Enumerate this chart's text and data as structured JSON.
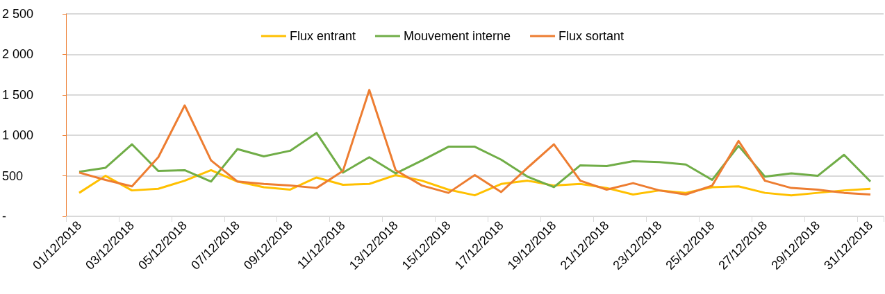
{
  "chart_data": {
    "type": "line",
    "categories": [
      "01/12/2018",
      null,
      "03/12/2018",
      null,
      "05/12/2018",
      null,
      "07/12/2018",
      null,
      "09/12/2018",
      null,
      "11/12/2018",
      null,
      "13/12/2018",
      null,
      "15/12/2018",
      null,
      "17/12/2018",
      null,
      "19/12/2018",
      null,
      "21/12/2018",
      null,
      "23/12/2018",
      null,
      "25/12/2018",
      null,
      "27/12/2018",
      null,
      "29/12/2018",
      null,
      "31/12/2018"
    ],
    "series": [
      {
        "name": "Flux entrant",
        "color": "#ffc000",
        "values": [
          290,
          500,
          320,
          340,
          440,
          570,
          430,
          360,
          330,
          480,
          390,
          400,
          510,
          440,
          330,
          260,
          400,
          440,
          380,
          400,
          350,
          270,
          320,
          290,
          360,
          370,
          290,
          260,
          290,
          320,
          340
        ]
      },
      {
        "name": "Mouvement interne",
        "color": "#70ad47",
        "values": [
          550,
          600,
          890,
          560,
          570,
          430,
          830,
          740,
          810,
          1030,
          540,
          730,
          530,
          690,
          860,
          860,
          700,
          490,
          360,
          630,
          620,
          680,
          670,
          640,
          450,
          870,
          490,
          530,
          500,
          760,
          430
        ]
      },
      {
        "name": "Flux sortant",
        "color": "#ed7d31",
        "values": [
          540,
          450,
          370,
          730,
          1370,
          690,
          430,
          400,
          380,
          350,
          560,
          1560,
          570,
          380,
          290,
          510,
          300,
          600,
          890,
          440,
          330,
          410,
          320,
          270,
          380,
          930,
          440,
          350,
          330,
          290,
          270
        ]
      }
    ],
    "ylim": [
      0,
      2500
    ],
    "yticks": [
      {
        "value": 0,
        "label": "-"
      },
      {
        "value": 500,
        "label": "500"
      },
      {
        "value": 1000,
        "label": "1 000"
      },
      {
        "value": 1500,
        "label": "1 500"
      },
      {
        "value": 2000,
        "label": "2 000"
      },
      {
        "value": 2500,
        "label": "2 500"
      }
    ],
    "grid": "y",
    "legend": "top",
    "marker": "none",
    "line_style": "solid"
  }
}
